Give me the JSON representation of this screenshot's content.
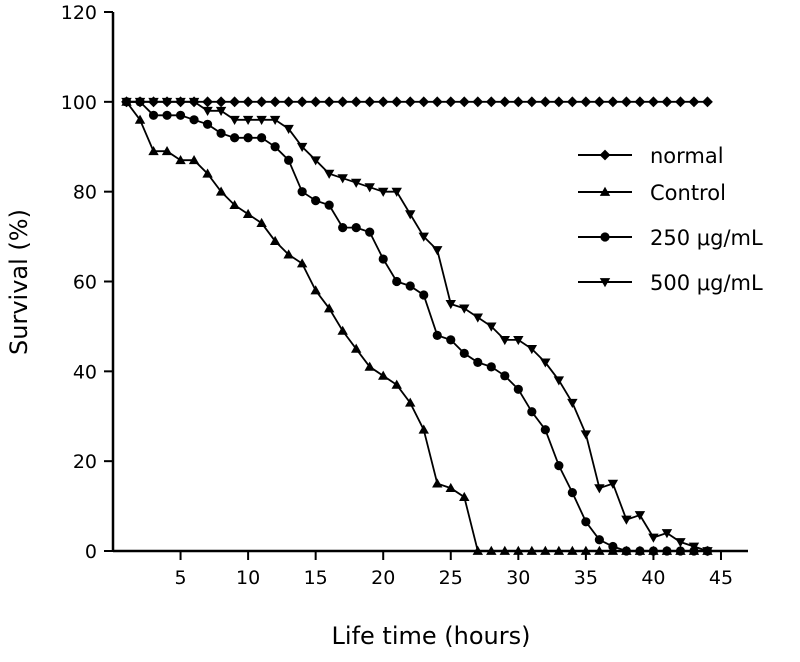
{
  "chart_data": {
    "type": "line",
    "title": "",
    "xlabel": "Life time (hours)",
    "ylabel": "Survival (%)",
    "xlim": [
      0,
      47
    ],
    "ylim": [
      0,
      120
    ],
    "xticks": [
      5,
      10,
      15,
      20,
      25,
      30,
      35,
      40,
      45
    ],
    "yticks": [
      0,
      20,
      40,
      60,
      80,
      100,
      120
    ],
    "grid": false,
    "legend_position": "right",
    "series": [
      {
        "name": "normal",
        "marker": "diamond",
        "x": [
          1,
          2,
          3,
          4,
          5,
          6,
          7,
          8,
          9,
          10,
          11,
          12,
          13,
          14,
          15,
          16,
          17,
          18,
          19,
          20,
          21,
          22,
          23,
          24,
          25,
          26,
          27,
          28,
          29,
          30,
          31,
          32,
          33,
          34,
          35,
          36,
          37,
          38,
          39,
          40,
          41,
          42,
          43,
          44
        ],
        "y": [
          100,
          100,
          100,
          100,
          100,
          100,
          100,
          100,
          100,
          100,
          100,
          100,
          100,
          100,
          100,
          100,
          100,
          100,
          100,
          100,
          100,
          100,
          100,
          100,
          100,
          100,
          100,
          100,
          100,
          100,
          100,
          100,
          100,
          100,
          100,
          100,
          100,
          100,
          100,
          100,
          100,
          100,
          100,
          100
        ]
      },
      {
        "name": "Control",
        "marker": "triangle-up",
        "x": [
          1,
          2,
          3,
          4,
          5,
          6,
          7,
          8,
          9,
          10,
          11,
          12,
          13,
          14,
          15,
          16,
          17,
          18,
          19,
          20,
          21,
          22,
          23,
          24,
          25,
          26,
          27,
          28,
          29,
          30,
          31,
          32,
          33,
          34,
          35,
          36,
          37,
          38,
          39,
          40,
          41,
          42,
          43,
          44
        ],
        "y": [
          100,
          96,
          89,
          89,
          87,
          87,
          84,
          80,
          77,
          75,
          73,
          69,
          66,
          64,
          58,
          54,
          49,
          45,
          41,
          39,
          37,
          33,
          27,
          15,
          14,
          12,
          0,
          0,
          0,
          0,
          0,
          0,
          0,
          0,
          0,
          0,
          0,
          0,
          0,
          0,
          0,
          0,
          0,
          0
        ]
      },
      {
        "name": "250 μg/mL",
        "marker": "circle",
        "x": [
          1,
          2,
          3,
          4,
          5,
          6,
          7,
          8,
          9,
          10,
          11,
          12,
          13,
          14,
          15,
          16,
          17,
          18,
          19,
          20,
          21,
          22,
          23,
          24,
          25,
          26,
          27,
          28,
          29,
          30,
          31,
          32,
          33,
          34,
          35,
          36,
          37,
          38,
          39,
          40,
          41,
          42,
          43,
          44
        ],
        "y": [
          100,
          100,
          97,
          97,
          97,
          96,
          95,
          93,
          92,
          92,
          92,
          90,
          87,
          80,
          78,
          77,
          72,
          72,
          71,
          65,
          60,
          59,
          57,
          48,
          47,
          44,
          42,
          41,
          39,
          36,
          31,
          27,
          19,
          13,
          6.5,
          2.5,
          1,
          0,
          0,
          0,
          0,
          0,
          0,
          0
        ]
      },
      {
        "name": "500 μg/mL",
        "marker": "triangle-down",
        "x": [
          1,
          2,
          3,
          4,
          5,
          6,
          7,
          8,
          9,
          10,
          11,
          12,
          13,
          14,
          15,
          16,
          17,
          18,
          19,
          20,
          21,
          22,
          23,
          24,
          25,
          26,
          27,
          28,
          29,
          30,
          31,
          32,
          33,
          34,
          35,
          36,
          37,
          38,
          39,
          40,
          41,
          42,
          43,
          44
        ],
        "y": [
          100,
          100,
          100,
          100,
          100,
          100,
          98,
          98,
          96,
          96,
          96,
          96,
          94,
          90,
          87,
          84,
          83,
          82,
          81,
          80,
          80,
          75,
          70,
          67,
          55,
          54,
          52,
          50,
          47,
          47,
          45,
          42,
          38,
          33,
          26,
          14,
          15,
          7,
          8,
          3,
          4,
          2,
          1,
          0
        ]
      }
    ]
  }
}
